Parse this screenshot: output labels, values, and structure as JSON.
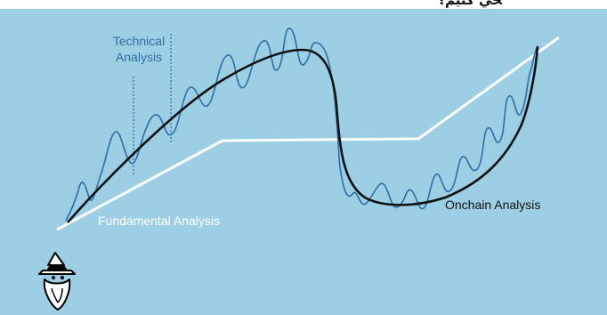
{
  "header_text": "ﺤﻲ ﮐﻨﻴﻢ؟",
  "labels": {
    "technical_line1": "Technical",
    "technical_line2": "Analysis",
    "fundamental": "Fundamental Analysis",
    "onchain": "Onchain Analysis"
  },
  "colors": {
    "background": "#9ccfe4",
    "technical": "#2a6fa8",
    "fundamental": "#ffffff",
    "onchain": "#111111"
  },
  "logo": "wizard-icon"
}
